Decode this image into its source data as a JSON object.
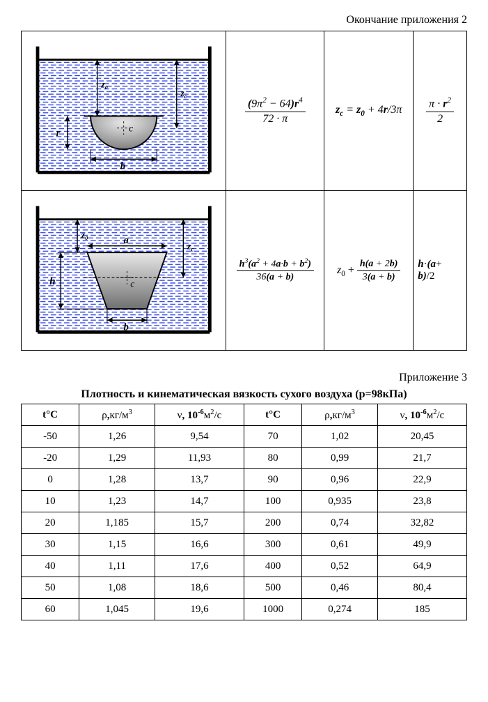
{
  "header": {
    "caption": "Окончание приложения 2"
  },
  "shapes": [
    {
      "figure": "semicircle",
      "labels": {
        "z0": "z0",
        "zc": "zc",
        "c": "c",
        "r": "r",
        "b": "b"
      },
      "formula_inertia": {
        "num_html": "<span class='bi'>(</span>9&pi;<sup>2</sup> &minus; 64<span class='bi'>)r</span><sup>4</sup>",
        "den_html": "72 &middot; &pi;"
      },
      "formula_zc_html": "<span class='bi'>z<sub>c</sub></span> = <span class='bi'>z<sub>0</sub></span> + 4<span class='bi'>r</span>/3&pi;",
      "formula_area": {
        "num_html": "&pi; &middot; <span class='bi'>r</span><sup>2</sup>",
        "den_html": "2"
      },
      "svg": {
        "water_color": "#2a3fe0",
        "fill_color": "#a8a8a8",
        "stroke": "#000000"
      }
    },
    {
      "figure": "trapezoid",
      "labels": {
        "z0": "z0",
        "zc": "zc",
        "a": "a",
        "b": "b",
        "c": "c",
        "h": "h"
      },
      "formula_inertia": {
        "num_html": "<span class='bi'>h</span><sup>3</sup><span class='bi'>(a</span><sup>2</sup> + 4<span class='bi'>a</span>&middot;<span class='bi'>b</span> + <span class='bi'>b</span><sup>2</sup><span class='bi'>)</span>",
        "den_html": "36<span class='bi'>(a</span> + <span class='bi'>b)</span>"
      },
      "formula_zc": {
        "lead_html": "<span class='it'>z</span><sub>0</sub> + ",
        "num_html": "<span class='bi'>h(a</span> + 2<span class='bi'>b)</span>",
        "den_html": "3<span class='bi'>(a</span> + <span class='bi'>b)</span>"
      },
      "formula_area_html": "<span class='bi'>h</span>&middot;<span class='bi'>(a</span>+<br><span class='bi'>b)</span>/2",
      "svg": {
        "water_color": "#2a3fe0",
        "fill_color": "#a8a8a8",
        "stroke": "#000000"
      }
    }
  ],
  "app3": {
    "label": "Приложение 3",
    "title": "Плотность и кинематическая вязкость сухого воздуха (р=98кПа)",
    "columns": {
      "t": {
        "html": "<span class='hdr-bold'>t&deg;C</span>"
      },
      "rho": {
        "html": "&rho;<span class='hdr-bold'>,</span>кг/м<sup>3</sup>"
      },
      "nu": {
        "html": "&nu;<span class='hdr-bold'>, 10<sup>-6</sup></span>м<sup>2</sup>/с"
      }
    },
    "rows": [
      {
        "t1": "-50",
        "rho1": "1,26",
        "nu1": "9,54",
        "t2": "70",
        "rho2": "1,02",
        "nu2": "20,45"
      },
      {
        "t1": "-20",
        "rho1": "1,29",
        "nu1": "11,93",
        "t2": "80",
        "rho2": "0,99",
        "nu2": "21,7"
      },
      {
        "t1": "0",
        "rho1": "1,28",
        "nu1": "13,7",
        "t2": "90",
        "rho2": "0,96",
        "nu2": "22,9"
      },
      {
        "t1": "10",
        "rho1": "1,23",
        "nu1": "14,7",
        "t2": "100",
        "rho2": "0,935",
        "nu2": "23,8"
      },
      {
        "t1": "20",
        "rho1": "1,185",
        "nu1": "15,7",
        "t2": "200",
        "rho2": "0,74",
        "nu2": "32,82"
      },
      {
        "t1": "30",
        "rho1": "1,15",
        "nu1": "16,6",
        "t2": "300",
        "rho2": "0,61",
        "nu2": "49,9"
      },
      {
        "t1": "40",
        "rho1": "1,11",
        "nu1": "17,6",
        "t2": "400",
        "rho2": "0,52",
        "nu2": "64,9"
      },
      {
        "t1": "50",
        "rho1": "1,08",
        "nu1": "18,6",
        "t2": "500",
        "rho2": "0,46",
        "nu2": "80,4"
      },
      {
        "t1": "60",
        "rho1": "1,045",
        "nu1": "19,6",
        "t2": "1000",
        "rho2": "0,274",
        "nu2": "185"
      }
    ],
    "col_widths": [
      "13%",
      "17%",
      "20%",
      "13%",
      "17%",
      "20%"
    ]
  }
}
